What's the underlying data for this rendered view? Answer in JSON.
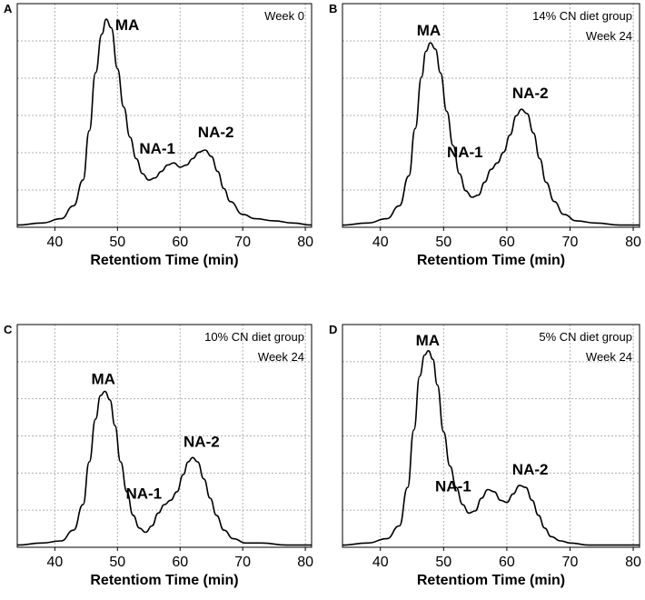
{
  "chart_data": [
    {
      "panel": "A",
      "type": "line",
      "title": "Week 0",
      "xlabel": "Retentiom Time (min)",
      "ylabel": "",
      "xlim": [
        34,
        81
      ],
      "ylim": [
        0,
        1
      ],
      "grid": true,
      "xticks": [
        40,
        50,
        60,
        70,
        80
      ],
      "series": [
        {
          "name": "HPLC trace",
          "x": [
            34,
            38,
            41,
            43,
            44.5,
            45.5,
            46.5,
            47.5,
            48.2,
            49,
            50,
            51,
            52,
            53,
            54,
            55,
            56,
            57,
            58,
            59,
            60,
            61,
            62,
            63,
            64,
            65,
            66,
            67,
            68,
            70,
            72,
            75,
            78,
            81
          ],
          "y": [
            0.01,
            0.02,
            0.04,
            0.1,
            0.22,
            0.45,
            0.72,
            0.9,
            0.97,
            0.93,
            0.74,
            0.56,
            0.42,
            0.32,
            0.25,
            0.22,
            0.23,
            0.26,
            0.29,
            0.3,
            0.28,
            0.29,
            0.32,
            0.35,
            0.36,
            0.33,
            0.26,
            0.18,
            0.12,
            0.06,
            0.04,
            0.03,
            0.02,
            0.01
          ]
        }
      ],
      "peaks": [
        {
          "label": "MA",
          "x": 48.2,
          "y": 0.97
        },
        {
          "label": "NA-1",
          "x": 59,
          "y": 0.3
        },
        {
          "label": "NA-2",
          "x": 64,
          "y": 0.36
        }
      ]
    },
    {
      "panel": "B",
      "type": "line",
      "title": "14% CN diet group\nWeek 24",
      "xlabel": "Retentiom Time (min)",
      "ylabel": "",
      "xlim": [
        34,
        81
      ],
      "ylim": [
        0,
        1
      ],
      "grid": true,
      "xticks": [
        40,
        50,
        60,
        70,
        80
      ],
      "series": [
        {
          "name": "HPLC trace",
          "x": [
            34,
            38,
            41,
            43,
            44.5,
            45.5,
            46.5,
            47.2,
            47.9,
            48.7,
            49.5,
            50.5,
            51.5,
            52.5,
            53.5,
            54.5,
            55.5,
            56.5,
            57.5,
            58.5,
            59.5,
            60.5,
            61.5,
            62.3,
            63.2,
            64.2,
            65.2,
            66.2,
            67.5,
            69,
            71,
            74,
            78,
            81
          ],
          "y": [
            0.01,
            0.02,
            0.04,
            0.1,
            0.24,
            0.46,
            0.7,
            0.82,
            0.86,
            0.83,
            0.72,
            0.54,
            0.38,
            0.25,
            0.17,
            0.14,
            0.15,
            0.21,
            0.27,
            0.3,
            0.35,
            0.43,
            0.52,
            0.55,
            0.53,
            0.44,
            0.32,
            0.21,
            0.12,
            0.06,
            0.03,
            0.02,
            0.01,
            0.01
          ]
        }
      ],
      "peaks": [
        {
          "label": "MA",
          "x": 47.9,
          "y": 0.86
        },
        {
          "label": "NA-1",
          "x": 58,
          "y": 0.3
        },
        {
          "label": "NA-2",
          "x": 62.3,
          "y": 0.55
        }
      ]
    },
    {
      "panel": "C",
      "type": "line",
      "title": "10% CN diet group\nWeek 24",
      "xlabel": "Retentiom Time (min)",
      "ylabel": "",
      "xlim": [
        34,
        81
      ],
      "ylim": [
        0,
        1
      ],
      "grid": true,
      "xticks": [
        40,
        50,
        60,
        70,
        80
      ],
      "series": [
        {
          "name": "HPLC trace",
          "x": [
            34,
            38,
            41,
            43,
            44.5,
            45.5,
            46.5,
            47.3,
            48,
            48.8,
            49.6,
            50.5,
            51.5,
            52.5,
            53.5,
            54.5,
            55.5,
            56.5,
            57.5,
            58.5,
            59.5,
            60.5,
            61.3,
            62,
            62.8,
            63.8,
            64.8,
            65.8,
            67,
            68.5,
            70.5,
            73,
            77,
            81
          ],
          "y": [
            0.01,
            0.02,
            0.03,
            0.08,
            0.2,
            0.4,
            0.6,
            0.71,
            0.73,
            0.69,
            0.57,
            0.4,
            0.26,
            0.15,
            0.09,
            0.07,
            0.1,
            0.16,
            0.2,
            0.22,
            0.26,
            0.34,
            0.4,
            0.42,
            0.4,
            0.32,
            0.23,
            0.15,
            0.08,
            0.04,
            0.02,
            0.02,
            0.01,
            0.01
          ]
        }
      ],
      "peaks": [
        {
          "label": "MA",
          "x": 48,
          "y": 0.73
        },
        {
          "label": "NA-1",
          "x": 58,
          "y": 0.21
        },
        {
          "label": "NA-2",
          "x": 62,
          "y": 0.42
        }
      ]
    },
    {
      "panel": "D",
      "type": "line",
      "title": "5% CN diet group\nWeek 24",
      "xlabel": "Retentiom Time (min)",
      "ylabel": "",
      "xlim": [
        34,
        81
      ],
      "ylim": [
        0,
        1
      ],
      "grid": true,
      "xticks": [
        40,
        50,
        60,
        70,
        80
      ],
      "series": [
        {
          "name": "HPLC trace",
          "x": [
            34,
            38,
            41,
            43,
            44.3,
            45.3,
            46.2,
            47,
            47.6,
            48.3,
            49,
            50,
            51,
            52,
            53,
            54,
            55,
            56,
            57,
            58,
            59,
            60,
            61,
            62,
            63,
            64,
            65,
            66,
            67,
            68.5,
            70,
            73,
            77,
            81
          ],
          "y": [
            0.01,
            0.02,
            0.04,
            0.1,
            0.28,
            0.55,
            0.8,
            0.9,
            0.92,
            0.88,
            0.76,
            0.54,
            0.38,
            0.28,
            0.2,
            0.16,
            0.17,
            0.23,
            0.27,
            0.26,
            0.22,
            0.21,
            0.25,
            0.29,
            0.28,
            0.22,
            0.15,
            0.09,
            0.05,
            0.03,
            0.02,
            0.01,
            0.01,
            0.01
          ]
        }
      ],
      "peaks": [
        {
          "label": "MA",
          "x": 47.6,
          "y": 0.92
        },
        {
          "label": "NA-1",
          "x": 57,
          "y": 0.27
        },
        {
          "label": "NA-2",
          "x": 62,
          "y": 0.29
        }
      ]
    }
  ]
}
